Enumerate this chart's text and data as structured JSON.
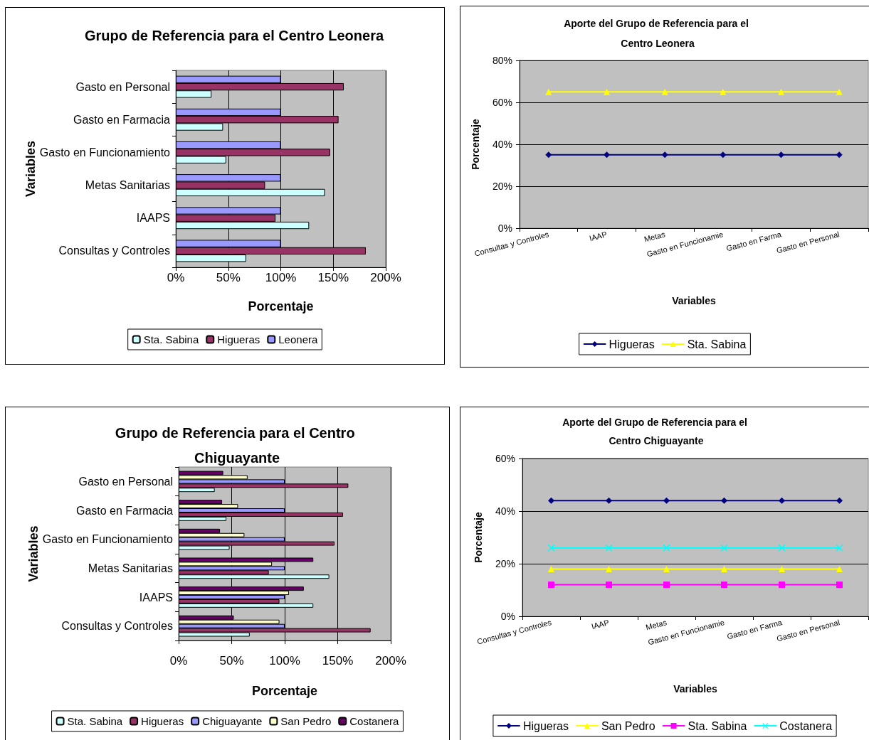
{
  "chart_data": [
    {
      "type": "bar",
      "orientation": "horizontal",
      "title": "Grupo de Referencia para el Centro Leonera",
      "xlabel": "Porcentaje",
      "ylabel": "Variables",
      "categories": [
        "Gasto en Personal",
        "Gasto en Farmacia",
        "Gasto en Funcionamiento",
        "Metas Sanitarias",
        "IAAPS",
        "Consultas y Controles"
      ],
      "series": [
        {
          "name": "Sta. Sabina",
          "color": "#ccffff",
          "values": [
            34,
            45,
            48,
            142,
            127,
            67
          ]
        },
        {
          "name": "Higueras",
          "color": "#993366",
          "values": [
            160,
            155,
            147,
            85,
            95,
            181
          ]
        },
        {
          "name": "Leonera",
          "color": "#9999ff",
          "values": [
            100,
            100,
            100,
            100,
            100,
            100
          ]
        }
      ],
      "xlim": [
        0,
        200
      ],
      "xticks": [
        {
          "value": 0,
          "label": "0%"
        },
        {
          "value": 50,
          "label": "50%"
        },
        {
          "value": 100,
          "label": "100%"
        },
        {
          "value": 150,
          "label": "150%"
        },
        {
          "value": 200,
          "label": "200%"
        }
      ],
      "grid": "x",
      "legend": "bottom"
    },
    {
      "type": "line",
      "title": "Aporte del Grupo de Referencia para el Centro Leonera",
      "xlabel": "Variables",
      "ylabel": "Porcentaje",
      "categories": [
        "Consultas y Controles",
        "IAAP",
        "Metas",
        "Gasto en Funcionamie",
        "Gasto en Farma",
        "Gasto en Personal"
      ],
      "series": [
        {
          "name": "Higueras",
          "color": "#000080",
          "marker": "diamond",
          "values": [
            35,
            35,
            35,
            35,
            35,
            35
          ]
        },
        {
          "name": "Sta. Sabina",
          "color": "#ffff00",
          "marker": "triangle",
          "values": [
            65,
            65,
            65,
            65,
            65,
            65
          ]
        }
      ],
      "ylim": [
        0,
        80
      ],
      "yticks": [
        {
          "value": 0,
          "label": "0%"
        },
        {
          "value": 20,
          "label": "20%"
        },
        {
          "value": 40,
          "label": "40%"
        },
        {
          "value": 60,
          "label": "60%"
        },
        {
          "value": 80,
          "label": "80%"
        }
      ],
      "grid": "y",
      "legend": "bottom",
      "line_style": "solid"
    },
    {
      "type": "bar",
      "orientation": "horizontal",
      "title": "Grupo de Referencia para el Centro Chiguayante",
      "xlabel": "Porcentaje",
      "ylabel": "Variables",
      "categories": [
        "Gasto en Personal",
        "Gasto en Farmacia",
        "Gasto en Funcionamiento",
        "Metas Sanitarias",
        "IAAPS",
        "Consultas y Controles"
      ],
      "series": [
        {
          "name": "Sta. Sabina",
          "color": "#ccffff",
          "values": [
            34,
            45,
            48,
            142,
            127,
            67
          ]
        },
        {
          "name": "Higueras",
          "color": "#993366",
          "values": [
            160,
            155,
            147,
            85,
            95,
            181
          ]
        },
        {
          "name": "Chiguayante",
          "color": "#9999ff",
          "values": [
            100,
            100,
            100,
            100,
            100,
            100
          ]
        },
        {
          "name": "San Pedro",
          "color": "#ffffcc",
          "values": [
            65,
            56,
            62,
            88,
            104,
            95
          ]
        },
        {
          "name": "Costanera",
          "color": "#660066",
          "values": [
            42,
            41,
            39,
            127,
            118,
            52
          ]
        }
      ],
      "xlim": [
        0,
        200
      ],
      "xticks": [
        {
          "value": 0,
          "label": "0%"
        },
        {
          "value": 50,
          "label": "50%"
        },
        {
          "value": 100,
          "label": "100%"
        },
        {
          "value": 150,
          "label": "150%"
        },
        {
          "value": 200,
          "label": "200%"
        }
      ],
      "grid": "x",
      "legend": "bottom"
    },
    {
      "type": "line",
      "title": "Aporte del Grupo de Referencia para el Centro Chiguayante",
      "xlabel": "Variables",
      "ylabel": "Porcentaje",
      "categories": [
        "Consultas y Controles",
        "IAAP",
        "Metas",
        "Gasto en Funcionamie",
        "Gasto en Farma",
        "Gasto en Personal"
      ],
      "series": [
        {
          "name": "Higueras",
          "color": "#000080",
          "marker": "diamond",
          "values": [
            44,
            44,
            44,
            44,
            44,
            44
          ]
        },
        {
          "name": "San Pedro",
          "color": "#ffff00",
          "marker": "triangle",
          "values": [
            18,
            18,
            18,
            18,
            18,
            18
          ]
        },
        {
          "name": "Sta. Sabina",
          "color": "#ff00ff",
          "marker": "square",
          "values": [
            12,
            12,
            12,
            12,
            12,
            12
          ]
        },
        {
          "name": "Costanera",
          "color": "#00ffff",
          "marker": "cross",
          "values": [
            26,
            26,
            26,
            26,
            26,
            26
          ]
        }
      ],
      "ylim": [
        0,
        60
      ],
      "yticks": [
        {
          "value": 0,
          "label": "0%"
        },
        {
          "value": 20,
          "label": "20%"
        },
        {
          "value": 40,
          "label": "40%"
        },
        {
          "value": 60,
          "label": "60%"
        }
      ],
      "grid": "y",
      "legend": "bottom",
      "line_style": "solid"
    }
  ]
}
